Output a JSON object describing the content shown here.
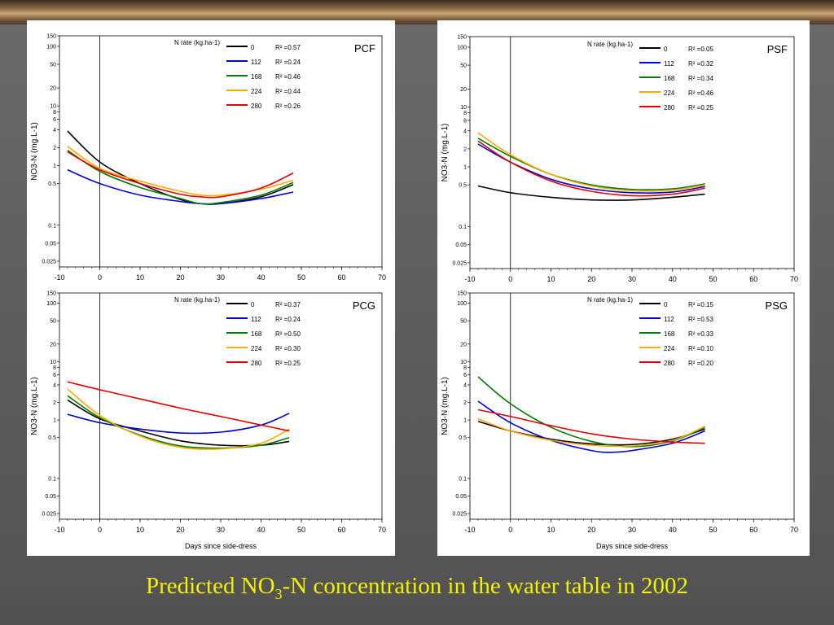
{
  "slide": {
    "title_prefix": "Predicted NO",
    "title_sub": "3",
    "title_suffix": "-N concentration in the water table in 2002"
  },
  "common": {
    "ylabel": "NO3-N (mg.L-1)",
    "xlabel": "Days since side-dress",
    "legend_title": "N rate (kg.ha-1)",
    "y_ticks": [
      "150",
      "100",
      "50",
      "20",
      "10",
      "8",
      "6",
      "4",
      "2",
      "1",
      "0.5",
      "0.1",
      "0.05",
      "0.025"
    ],
    "y_tick_values": [
      150,
      100,
      50,
      20,
      10,
      8,
      6,
      4,
      2,
      1,
      0.5,
      0.1,
      0.05,
      0.025
    ],
    "x_ticks": [
      "-10",
      "0",
      "10",
      "20",
      "30",
      "40",
      "50",
      "60",
      "70"
    ],
    "x_tick_values": [
      -10,
      0,
      10,
      20,
      30,
      40,
      50,
      60,
      70
    ]
  },
  "chart_data": [
    {
      "type": "line",
      "title": "PCF",
      "y_scale": "log",
      "ylim": [
        0.02,
        150
      ],
      "xlim": [
        -10,
        70
      ],
      "vertical_line_x": 0,
      "series": [
        {
          "name": "0",
          "r2": "R² =0.57",
          "color": "#000000",
          "x": [
            -8,
            0,
            10,
            20,
            25,
            30,
            40,
            48
          ],
          "y": [
            3.8,
            1.15,
            0.5,
            0.27,
            0.23,
            0.23,
            0.3,
            0.48
          ]
        },
        {
          "name": "112",
          "r2": "R² =0.24",
          "color": "#0000d0",
          "x": [
            -8,
            0,
            10,
            20,
            25,
            30,
            40,
            48
          ],
          "y": [
            0.85,
            0.5,
            0.32,
            0.25,
            0.23,
            0.23,
            0.28,
            0.36
          ]
        },
        {
          "name": "168",
          "r2": "R² =0.46",
          "color": "#007a00",
          "x": [
            -8,
            0,
            10,
            20,
            25,
            30,
            40,
            48
          ],
          "y": [
            1.8,
            0.8,
            0.43,
            0.28,
            0.23,
            0.24,
            0.32,
            0.52
          ]
        },
        {
          "name": "224",
          "r2": "R² =0.44",
          "color": "#ffaa00",
          "x": [
            -8,
            0,
            10,
            20,
            25,
            30,
            40,
            48
          ],
          "y": [
            2.1,
            0.9,
            0.55,
            0.37,
            0.32,
            0.32,
            0.4,
            0.57
          ]
        },
        {
          "name": "280",
          "r2": "R² =0.26",
          "color": "#e00000",
          "x": [
            -8,
            0,
            10,
            20,
            25,
            30,
            40,
            48
          ],
          "y": [
            1.7,
            0.85,
            0.5,
            0.33,
            0.3,
            0.3,
            0.42,
            0.75
          ]
        }
      ]
    },
    {
      "type": "line",
      "title": "PSF",
      "y_scale": "log",
      "ylim": [
        0.02,
        150
      ],
      "xlim": [
        -10,
        70
      ],
      "vertical_line_x": 0,
      "series": [
        {
          "name": "0",
          "r2": "R² =0.05",
          "color": "#000000",
          "x": [
            -8,
            0,
            10,
            20,
            30,
            40,
            48
          ],
          "y": [
            0.48,
            0.37,
            0.31,
            0.28,
            0.28,
            0.31,
            0.35
          ]
        },
        {
          "name": "112",
          "r2": "R² =0.32",
          "color": "#0000d0",
          "x": [
            -8,
            0,
            10,
            20,
            30,
            40,
            48
          ],
          "y": [
            2.4,
            1.2,
            0.62,
            0.43,
            0.37,
            0.38,
            0.47
          ]
        },
        {
          "name": "168",
          "r2": "R² =0.34",
          "color": "#007a00",
          "x": [
            -8,
            0,
            10,
            20,
            30,
            40,
            48
          ],
          "y": [
            3.0,
            1.5,
            0.75,
            0.5,
            0.42,
            0.43,
            0.52
          ]
        },
        {
          "name": "224",
          "r2": "R² =0.46",
          "color": "#ffaa00",
          "x": [
            -8,
            0,
            10,
            20,
            30,
            40,
            48
          ],
          "y": [
            3.7,
            1.6,
            0.75,
            0.48,
            0.4,
            0.41,
            0.5
          ]
        },
        {
          "name": "280",
          "r2": "R² =0.25",
          "color": "#e00000",
          "x": [
            -8,
            0,
            10,
            20,
            30,
            40,
            48
          ],
          "y": [
            2.7,
            1.2,
            0.58,
            0.39,
            0.33,
            0.35,
            0.44
          ]
        }
      ]
    },
    {
      "type": "line",
      "title": "PCG",
      "y_scale": "log",
      "ylim": [
        0.02,
        150
      ],
      "xlim": [
        -10,
        70
      ],
      "vertical_line_x": 0,
      "series": [
        {
          "name": "0",
          "r2": "R² =0.37",
          "color": "#000000",
          "x": [
            -8,
            0,
            10,
            20,
            30,
            40,
            47
          ],
          "y": [
            2.2,
            1.05,
            0.65,
            0.44,
            0.37,
            0.37,
            0.43
          ]
        },
        {
          "name": "112",
          "r2": "R² =0.24",
          "color": "#0000d0",
          "x": [
            -8,
            0,
            10,
            20,
            30,
            40,
            47
          ],
          "y": [
            1.25,
            0.9,
            0.7,
            0.6,
            0.62,
            0.82,
            1.3
          ]
        },
        {
          "name": "168",
          "r2": "R² =0.50",
          "color": "#007a00",
          "x": [
            -8,
            0,
            10,
            20,
            30,
            40,
            47
          ],
          "y": [
            2.6,
            1.1,
            0.55,
            0.36,
            0.33,
            0.37,
            0.5
          ]
        },
        {
          "name": "224",
          "r2": "R² =0.30",
          "color": "#ffaa00",
          "x": [
            -8,
            0,
            10,
            20,
            30,
            40,
            47
          ],
          "y": [
            3.4,
            1.2,
            0.53,
            0.34,
            0.32,
            0.4,
            0.7
          ]
        },
        {
          "name": "280",
          "r2": "R² =0.25",
          "color": "#e00000",
          "x": [
            -8,
            0,
            10,
            20,
            30,
            40,
            47
          ],
          "y": [
            4.5,
            3.3,
            2.3,
            1.6,
            1.15,
            0.82,
            0.65
          ]
        }
      ]
    },
    {
      "type": "line",
      "title": "PSG",
      "y_scale": "log",
      "ylim": [
        0.02,
        150
      ],
      "xlim": [
        -10,
        70
      ],
      "vertical_line_x": 0,
      "series": [
        {
          "name": "0",
          "r2": "R² =0.15",
          "color": "#000000",
          "x": [
            -8,
            0,
            10,
            20,
            30,
            40,
            48
          ],
          "y": [
            0.95,
            0.65,
            0.47,
            0.39,
            0.38,
            0.47,
            0.7
          ]
        },
        {
          "name": "112",
          "r2": "R² =0.53",
          "color": "#0000d0",
          "x": [
            -8,
            0,
            10,
            20,
            25,
            30,
            40,
            48
          ],
          "y": [
            2.1,
            0.9,
            0.45,
            0.3,
            0.28,
            0.3,
            0.4,
            0.65
          ]
        },
        {
          "name": "168",
          "r2": "R² =0.33",
          "color": "#007a00",
          "x": [
            -8,
            0,
            10,
            20,
            30,
            40,
            48
          ],
          "y": [
            5.5,
            1.9,
            0.75,
            0.43,
            0.35,
            0.44,
            0.75
          ]
        },
        {
          "name": "224",
          "r2": "R² =0.10",
          "color": "#ffaa00",
          "x": [
            -8,
            0,
            10,
            20,
            30,
            40,
            48
          ],
          "y": [
            1.05,
            0.65,
            0.45,
            0.37,
            0.36,
            0.45,
            0.78
          ]
        },
        {
          "name": "280",
          "r2": "R² =0.20",
          "color": "#e00000",
          "x": [
            -8,
            0,
            10,
            20,
            30,
            40,
            48
          ],
          "y": [
            1.5,
            1.15,
            0.8,
            0.58,
            0.47,
            0.42,
            0.4
          ]
        }
      ]
    }
  ]
}
